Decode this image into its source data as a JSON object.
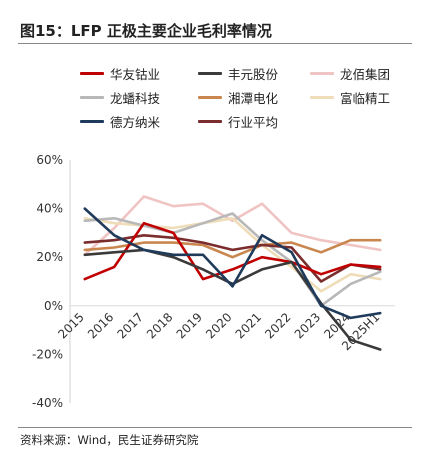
{
  "figure": {
    "title": "图15：LFP 正极主要企业毛利率情况",
    "source": "资料来源：Wind，民生证券研究院"
  },
  "chart_data": {
    "type": "line",
    "categories": [
      "2015",
      "2016",
      "2017",
      "2018",
      "2019",
      "2020",
      "2021",
      "2022",
      "2023",
      "2024",
      "2025H1"
    ],
    "ylim": [
      -40,
      60
    ],
    "yticks": [
      -40,
      -20,
      0,
      20,
      40,
      60
    ],
    "ytick_labels": [
      "-40%",
      "-20%",
      "0%",
      "20%",
      "40%",
      "60%"
    ],
    "grid": false,
    "legend_position": "top",
    "series": [
      {
        "name": "华友钴业",
        "color": "#c00000",
        "values": [
          11,
          16,
          34,
          30,
          11,
          15,
          20,
          18,
          13,
          17,
          16
        ]
      },
      {
        "name": "丰元股份",
        "color": "#3a3a3a",
        "values": [
          21,
          22,
          23,
          20,
          15,
          9,
          15,
          18,
          1,
          -14,
          -18
        ]
      },
      {
        "name": "龙佰集团",
        "color": "#f0c4c2",
        "values": [
          21,
          32,
          45,
          41,
          42,
          35,
          42,
          30,
          27,
          25,
          23
        ]
      },
      {
        "name": "龙蟠科技",
        "color": "#b8b8b8",
        "values": [
          35,
          36,
          33,
          30,
          34,
          38,
          27,
          18,
          0,
          9,
          14
        ]
      },
      {
        "name": "湘潭电化",
        "color": "#c9874f",
        "values": [
          23,
          24,
          26,
          26,
          25,
          20,
          25,
          26,
          22,
          27,
          27
        ]
      },
      {
        "name": "富临精工",
        "color": "#efdcb8",
        "values": [
          36,
          34,
          33,
          32,
          34,
          36,
          25,
          16,
          6,
          13,
          11
        ]
      },
      {
        "name": "德方纳米",
        "color": "#1f3a5a",
        "values": [
          40,
          29,
          23,
          21,
          21,
          8,
          29,
          22,
          0,
          -5,
          -3
        ]
      },
      {
        "name": "行业平均",
        "color": "#7b2d2d",
        "values": [
          26,
          27,
          29,
          28,
          26,
          23,
          25,
          24,
          10,
          17,
          15
        ]
      }
    ]
  }
}
